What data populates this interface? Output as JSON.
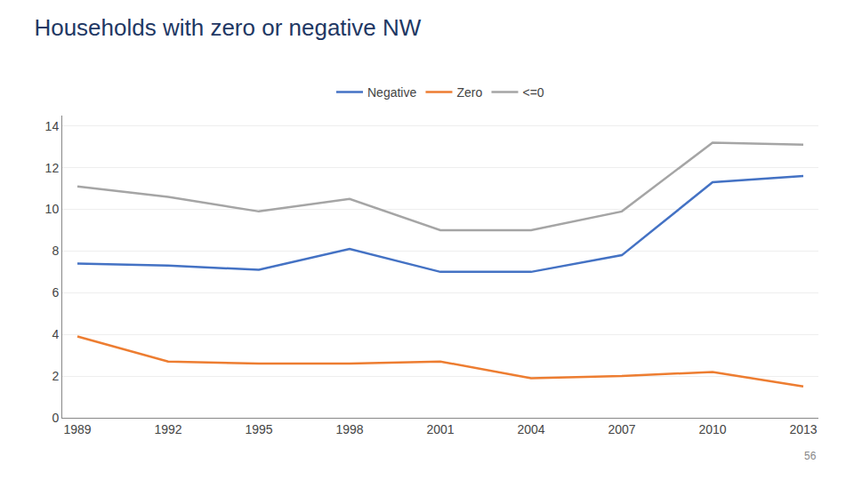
{
  "chart_data": {
    "type": "line",
    "title": "Households with zero or negative NW",
    "x": [
      1989,
      1992,
      1995,
      1998,
      2001,
      2004,
      2007,
      2010,
      2013
    ],
    "series": [
      {
        "name": "Negative",
        "color": "#4472C4",
        "values": [
          7.4,
          7.3,
          7.1,
          8.1,
          7.0,
          7.0,
          7.8,
          11.3,
          11.6
        ]
      },
      {
        "name": "Zero",
        "color": "#ED7D31",
        "values": [
          3.9,
          2.7,
          2.6,
          2.6,
          2.7,
          1.9,
          2.0,
          2.2,
          1.5
        ]
      },
      {
        "name": "<=0",
        "color": "#A5A5A5",
        "values": [
          11.1,
          10.6,
          9.9,
          10.5,
          9.0,
          9.0,
          9.9,
          13.2,
          13.1
        ]
      }
    ],
    "xlim": [
      1988.5,
      2013.5
    ],
    "xticks": [
      1989,
      1992,
      1995,
      1998,
      2001,
      2004,
      2007,
      2010,
      2013
    ],
    "ylim": [
      0,
      14.5
    ],
    "yticks": [
      0,
      2,
      4,
      6,
      8,
      10,
      12,
      14
    ],
    "grid": true,
    "legend": "top",
    "annotations": [
      "56"
    ]
  }
}
